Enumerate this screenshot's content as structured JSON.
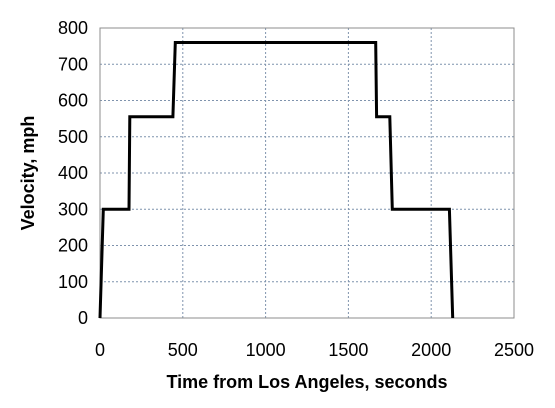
{
  "chart_data": {
    "type": "line",
    "title": "",
    "xlabel": "Time from Los Angeles, seconds",
    "ylabel": "Velocity, mph",
    "xlim": [
      0,
      2500
    ],
    "ylim": [
      0,
      800
    ],
    "x_ticks": [
      0,
      500,
      1000,
      1500,
      2000,
      2500
    ],
    "y_ticks": [
      0,
      100,
      200,
      300,
      400,
      500,
      600,
      700,
      800
    ],
    "x_tick_labels": [
      "0",
      "500",
      "1000",
      "1500",
      "2000",
      "2500"
    ],
    "y_tick_labels": [
      "0",
      "100",
      "200",
      "300",
      "400",
      "500",
      "600",
      "700",
      "800"
    ],
    "grid": true,
    "legend": "none",
    "colors": {
      "line": "#000000",
      "grid": "#7f93ad",
      "plot_border": "#8c8c8c"
    },
    "series": [
      {
        "x": [
          0,
          20,
          175,
          180,
          440,
          455,
          1665,
          1670,
          1750,
          1765,
          2110,
          2130
        ],
        "y": [
          0,
          300,
          300,
          555,
          555,
          760,
          760,
          555,
          555,
          300,
          300,
          0
        ]
      }
    ]
  }
}
